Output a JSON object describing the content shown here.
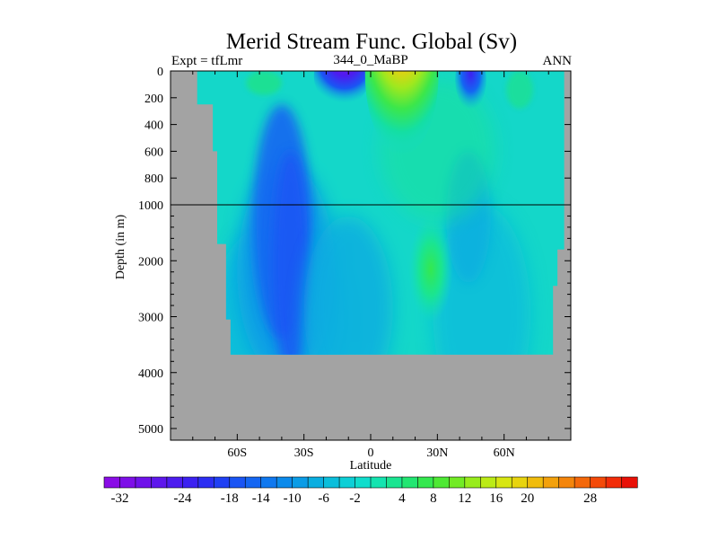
{
  "chart_data": {
    "type": "heatmap",
    "title": "Merid Stream Func. Global (Sv)",
    "left_label": "Expt = tfLmr",
    "center_label": "344_0_MaBP",
    "right_label": "ANN",
    "xlabel": "Latitude",
    "ylabel": "Depth (in m)",
    "x_axis": {
      "range": [
        -90,
        90
      ],
      "ticks": [
        -60,
        -30,
        0,
        30,
        60
      ],
      "tick_labels": [
        "60S",
        "30S",
        "0",
        "30N",
        "60N"
      ]
    },
    "y_axis": {
      "description": "depth, axis compressed above 1000 m",
      "upper_ticks": [
        0,
        200,
        400,
        600,
        800,
        1000
      ],
      "lower_ticks": [
        2000,
        3000,
        4000,
        5000
      ],
      "tick_labels": [
        "0",
        "200",
        "400",
        "600",
        "800",
        "1000",
        "2000",
        "3000",
        "4000",
        "5000"
      ],
      "range": [
        0,
        5200
      ],
      "reference_line_depth": 1000
    },
    "colorbar": {
      "levels_min": -34,
      "levels_max": 34,
      "interval": 2,
      "tick_labels": [
        "-32",
        "-24",
        "-18",
        "-14",
        "-10",
        "-6",
        "-2",
        "4",
        "8",
        "12",
        "16",
        "20",
        "28"
      ],
      "tick_values": [
        -32,
        -24,
        -18,
        -14,
        -10,
        -6,
        -2,
        4,
        8,
        12,
        16,
        20,
        28
      ],
      "colors": [
        "#8a0ce6",
        "#7e0fe8",
        "#6f12ea",
        "#5e17ec",
        "#4d1cef",
        "#3c21f1",
        "#2c2ef3",
        "#2040f4",
        "#1a55f4",
        "#1466f2",
        "#0f78ef",
        "#0b8aeb",
        "#0a9ce6",
        "#0aaee0",
        "#0bbedb",
        "#0dcfd6",
        "#10ddcc",
        "#14e4b0",
        "#1ae591",
        "#22e672",
        "#34e84f",
        "#4ee934",
        "#72eb25",
        "#98ec1c",
        "#bbeb16",
        "#d8e612",
        "#e8d40f",
        "#f0bc0d",
        "#f3a10c",
        "#f4850b",
        "#f4680a",
        "#f44a09",
        "#f22c08",
        "#e81007"
      ]
    },
    "land_color": "#a3a3a3",
    "background_level_color": "#14d7c9",
    "grid": false
  }
}
